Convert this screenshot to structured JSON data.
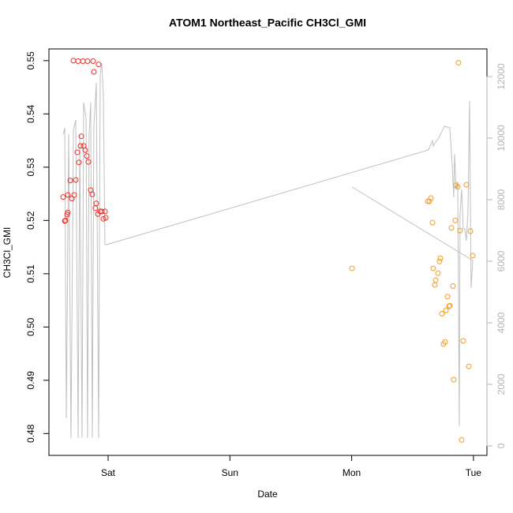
{
  "chart_data": {
    "type": "scatter",
    "title": "ATOM1 Northeast_Pacific CH3Cl_GMI",
    "xlabel": "Date",
    "ylabel": "CH3Cl_GMI",
    "xlim": [
      -0.486,
      3.111
    ],
    "ylim": [
      0.4759,
      0.5522
    ],
    "y2lim": [
      -308,
      12897
    ],
    "xticks": [
      {
        "value": 0,
        "label": "Sat"
      },
      {
        "value": 1,
        "label": "Sun"
      },
      {
        "value": 2,
        "label": "Mon"
      },
      {
        "value": 3,
        "label": "Tue"
      }
    ],
    "yticks": [
      0.48,
      0.49,
      {
        "value": 0.5,
        "label": "0.50"
      },
      0.51,
      0.52,
      0.53,
      0.54,
      0.55
    ],
    "y2ticks": [
      0,
      2000,
      4000,
      6000,
      8000,
      10000,
      12000
    ],
    "y2tick_color": "#b4b4b4",
    "grid": false,
    "series": [
      {
        "type": "scatter",
        "color": "#e8312a",
        "x": [
          -0.369,
          -0.356,
          -0.35,
          -0.337,
          -0.331,
          -0.331,
          -0.311,
          -0.298,
          -0.285,
          -0.279,
          -0.266,
          -0.253,
          -0.246,
          -0.24,
          -0.227,
          -0.22,
          -0.207,
          -0.201,
          -0.188,
          -0.175,
          -0.169,
          -0.162,
          -0.143,
          -0.13,
          -0.123,
          -0.117,
          -0.104,
          -0.097,
          -0.084,
          -0.078,
          -0.065,
          -0.052,
          -0.039,
          -0.026,
          -0.019
        ],
        "values": [
          0.5244,
          0.5199,
          0.52,
          0.5211,
          0.5215,
          0.5248,
          0.5275,
          0.5241,
          0.55,
          0.5248,
          0.5276,
          0.5328,
          0.5499,
          0.5309,
          0.534,
          0.5358,
          0.5499,
          0.534,
          0.5332,
          0.5321,
          0.5499,
          0.531,
          0.5257,
          0.5249,
          0.5499,
          0.5479,
          0.5223,
          0.5232,
          0.5212,
          0.5493,
          0.5217,
          0.5217,
          0.5203,
          0.5217,
          0.5205
        ]
      },
      {
        "type": "scatter",
        "color": "#f39c24",
        "x": [
          2.003,
          2.625,
          2.638,
          2.651,
          2.664,
          2.67,
          2.683,
          2.69,
          2.709,
          2.722,
          2.728,
          2.741,
          2.754,
          2.767,
          2.774,
          2.787,
          2.8,
          2.806,
          2.819,
          2.832,
          2.838,
          2.851,
          2.858,
          2.871,
          2.877,
          2.89,
          2.903,
          2.916,
          2.942,
          2.962,
          2.975,
          2.994
        ],
        "values": [
          0.511,
          0.5236,
          0.5236,
          0.5242,
          0.5196,
          0.511,
          0.5079,
          0.5088,
          0.5101,
          0.5123,
          0.5129,
          0.5025,
          0.4968,
          0.4972,
          0.5031,
          0.5057,
          0.5039,
          0.504,
          0.5186,
          0.5077,
          0.4901,
          0.52,
          0.5266,
          0.5263,
          0.5496,
          0.5181,
          0.4788,
          0.4974,
          0.5267,
          0.4926,
          0.518,
          0.5134
        ]
      },
      {
        "type": "line",
        "axis": "y2",
        "color": "#c0c0c0",
        "x": [
          -0.369,
          -0.356,
          -0.343,
          -0.324,
          -0.305,
          -0.285,
          -0.266,
          -0.246,
          -0.233,
          -0.214,
          -0.201,
          -0.181,
          -0.169,
          -0.156,
          -0.143,
          -0.13,
          -0.117,
          -0.097,
          -0.078,
          -0.065,
          -0.052,
          -0.039,
          -0.026,
          -0.013,
          2.631,
          2.664,
          2.67,
          2.69,
          2.715,
          2.761,
          2.806,
          2.826,
          2.838,
          2.845,
          2.858,
          2.871,
          2.884,
          2.89,
          2.903,
          2.916,
          2.929,
          2.942,
          2.955,
          2.968,
          2.981,
          2.994,
          2.003
        ],
        "values": [
          10128,
          10333,
          897,
          10128,
          256,
          10250,
          10590,
          256,
          10128,
          256,
          11154,
          10641,
          256,
          10128,
          11154,
          256,
          10380,
          11795,
          256,
          12051,
          12436,
          11410,
          6538,
          6538,
          9615,
          9923,
          9744,
          9872,
          10000,
          10385,
          10333,
          9103,
          8077,
          9487,
          8333,
          8590,
          641,
          7564,
          8333,
          7051,
          7051,
          6667,
          7564,
          11205,
          5128,
          6026,
          8410
        ]
      }
    ]
  }
}
